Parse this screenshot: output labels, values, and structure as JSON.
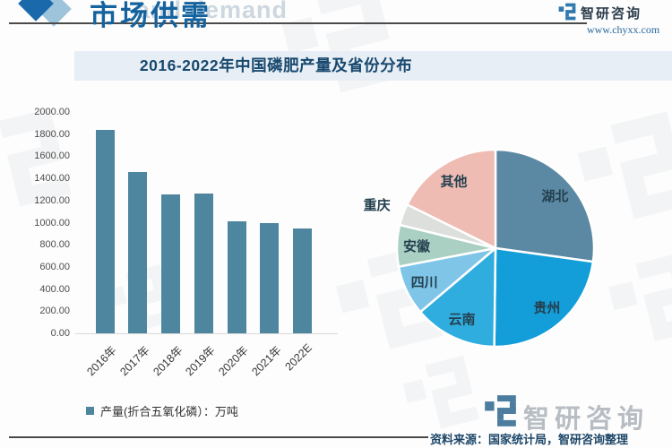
{
  "header": {
    "section_title": "市场供需",
    "background_text": "and demand",
    "brand_name": "智研咨询",
    "brand_url": "www.chyxx.com"
  },
  "title": "2016-2022年中国磷肥产量及省份分布",
  "footer": {
    "source_note": "资料来源：国家统计局，智研咨询整理",
    "brand_name": "智研咨询"
  },
  "colors": {
    "bar": "#4e86a0",
    "accent_blue": "#15639e",
    "banner_bg": "#e8eef5",
    "title_text": "#17486e"
  },
  "chart_data": [
    {
      "type": "bar",
      "title": "2016-2022年中国磷肥产量及省份分布",
      "categories": [
        "2016年",
        "2017年",
        "2018年",
        "2019年",
        "2020年",
        "2021年",
        "2022E"
      ],
      "values": [
        1840,
        1460,
        1255,
        1265,
        1015,
        1000,
        945
      ],
      "legend": "产量(折合五氧化磷）：万吨",
      "unit": "万吨",
      "ylim": [
        0,
        2000
      ],
      "yticks": [
        "2000.00",
        "1800.00",
        "1600.00",
        "1400.00",
        "1200.00",
        "1000.00",
        "800.00",
        "600.00",
        "400.00",
        "200.00",
        "0.00"
      ],
      "grid": false,
      "bar_color": "#4e86a0"
    },
    {
      "type": "pie",
      "start_angle_deg": 0,
      "clockwise": true,
      "slices": [
        {
          "label": "湖北",
          "share_pct": 27.2,
          "color": "#5b89a3",
          "label_inside": true
        },
        {
          "label": "贵州",
          "share_pct": 23.0,
          "color": "#149ed9",
          "label_inside": true
        },
        {
          "label": "云南",
          "share_pct": 13.6,
          "color": "#2fadde",
          "label_inside": true
        },
        {
          "label": "四川",
          "share_pct": 8.2,
          "color": "#7ec5e8",
          "label_inside": true
        },
        {
          "label": "安徽",
          "share_pct": 6.8,
          "color": "#aacfc3",
          "label_inside": true
        },
        {
          "label": "重庆",
          "share_pct": 3.5,
          "color": "#dcdfdc",
          "label_inside": false
        },
        {
          "label": "其他",
          "share_pct": 17.7,
          "color": "#efbcb3",
          "label_inside": true
        }
      ]
    }
  ]
}
